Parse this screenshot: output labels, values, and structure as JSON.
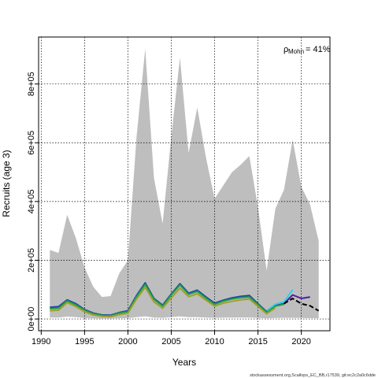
{
  "chart_data": {
    "type": "line",
    "title": "",
    "xlabel": "Years",
    "ylabel": "Recruits (age 3)",
    "xlim": [
      1989.7,
      2023.3
    ],
    "ylim": [
      -40000,
      960000
    ],
    "x_ticks": [
      1990,
      1995,
      2000,
      2005,
      2010,
      2015,
      2020
    ],
    "y_ticks": [
      0,
      200000,
      400000,
      600000,
      800000
    ],
    "y_tick_labels": [
      "0e+00",
      "2e+05",
      "4e+05",
      "6e+05",
      "8e+05"
    ],
    "grid": true,
    "grid_style": "dotted",
    "annotation": {
      "rho_symbol": "ρ",
      "rho_subscript": "Mohn",
      "rho_value": "= 41%"
    },
    "footer_text": "stockassessment.org,Scallops_EC_BB,r17539, git:ec2c2a0c6dde",
    "ci_band": {
      "color": "#bebebe",
      "x": [
        1991,
        1992,
        1993,
        1994,
        1995,
        1996,
        1997,
        1998,
        1999,
        2000,
        2001,
        2002,
        2003,
        2004,
        2005,
        2006,
        2007,
        2008,
        2009,
        2010,
        2011,
        2012,
        2013,
        2014,
        2015,
        2016,
        2017,
        2018,
        2019,
        2020,
        2021,
        2022
      ],
      "upper": [
        235000,
        225000,
        355000,
        275000,
        175000,
        110000,
        75000,
        78000,
        155000,
        200000,
        620000,
        920000,
        480000,
        325000,
        620000,
        890000,
        565000,
        720000,
        550000,
        410000,
        455000,
        500000,
        525000,
        555000,
        380000,
        165000,
        375000,
        440000,
        610000,
        450000,
        390000,
        265000
      ],
      "lower": [
        5000,
        5000,
        8000,
        6000,
        3000,
        2000,
        1500,
        1500,
        2500,
        3000,
        6000,
        9000,
        5000,
        4000,
        6000,
        9000,
        6000,
        6000,
        5000,
        4000,
        4500,
        5000,
        5000,
        5000,
        3500,
        2000,
        3500,
        4000,
        4000,
        3500,
        3000,
        2500
      ]
    },
    "series": [
      {
        "color": "#2040b0",
        "dash": "",
        "x": [
          1991,
          1992,
          1993,
          1994,
          1995,
          1996,
          1997,
          1998,
          1999,
          2000,
          2001,
          2002,
          2003,
          2004,
          2005,
          2006,
          2007,
          2008,
          2009,
          2010,
          2011,
          2012,
          2013,
          2014,
          2015,
          2016,
          2017,
          2018
        ],
        "values": [
          40000,
          42000,
          65000,
          52000,
          32000,
          20000,
          14000,
          13000,
          22000,
          28000,
          80000,
          123000,
          70000,
          47000,
          85000,
          120000,
          88000,
          98000,
          75000,
          54000,
          64000,
          72000,
          77000,
          80000,
          52000,
          25000,
          46000,
          52000
        ]
      },
      {
        "color": "#30d0e8",
        "dash": "",
        "x": [
          2016,
          2017,
          2018,
          2019
        ],
        "values": [
          28000,
          50000,
          58000,
          100000
        ]
      },
      {
        "color": "#5020a0",
        "dash": "",
        "x": [
          2017,
          2018,
          2019,
          2020,
          2021
        ],
        "values": [
          45000,
          52000,
          82000,
          70000,
          75000
        ]
      },
      {
        "color": "#20a040",
        "dash": "",
        "x": [
          1991,
          1992,
          1993,
          1994,
          1995,
          1996,
          1997,
          1998,
          1999,
          2000,
          2001,
          2002,
          2003,
          2004,
          2005,
          2006,
          2007,
          2008,
          2009,
          2010,
          2011,
          2012,
          2013,
          2014,
          2015,
          2016,
          2017,
          2018
        ],
        "values": [
          35000,
          37000,
          62000,
          48000,
          30000,
          18000,
          12000,
          11000,
          20000,
          25000,
          76000,
          118000,
          67000,
          44000,
          82000,
          116000,
          84000,
          94000,
          71000,
          50000,
          61000,
          68000,
          73000,
          75000,
          49000,
          22000,
          44000,
          50000
        ]
      },
      {
        "color": "#a0a030",
        "dash": "",
        "x": [
          1991,
          1992,
          1993,
          1994,
          1995,
          1996,
          1997,
          1998,
          1999,
          2000,
          2001,
          2002,
          2003,
          2004,
          2005,
          2006,
          2007,
          2008,
          2009,
          2010,
          2011,
          2012,
          2013,
          2014,
          2015,
          2016,
          2017
        ],
        "values": [
          28000,
          30000,
          56000,
          42000,
          25000,
          14000,
          9000,
          8000,
          15000,
          20000,
          68000,
          108000,
          58000,
          37000,
          72000,
          105000,
          76000,
          86000,
          64000,
          44000,
          54000,
          60000,
          65000,
          68000,
          43000,
          18000,
          38000
        ]
      },
      {
        "color": "#000000",
        "dash": "6,3",
        "x": [
          2018,
          2019,
          2020,
          2021,
          2022
        ],
        "values": [
          52000,
          70000,
          52000,
          45000,
          28000
        ]
      }
    ]
  }
}
